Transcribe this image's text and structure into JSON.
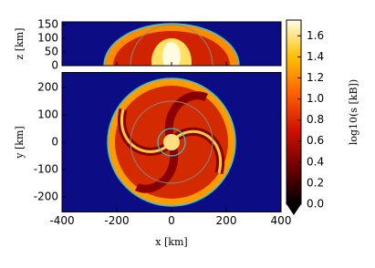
{
  "chart_data": [
    {
      "type": "heatmap",
      "ylabel": "z [km]",
      "xlim": [
        -400,
        400
      ],
      "ylim": [
        0,
        160
      ],
      "yticks": [
        0,
        50,
        100,
        150
      ]
    },
    {
      "type": "heatmap",
      "xlabel": "x [km]",
      "ylabel": "y [km]",
      "xlim": [
        -400,
        400
      ],
      "ylim": [
        -255,
        255
      ],
      "xticks": [
        -400,
        -200,
        0,
        200,
        400
      ],
      "yticks": [
        -200,
        -100,
        0,
        100,
        200
      ],
      "colorbar": {
        "label": "log10(s [kB])",
        "lim": [
          0,
          1.75
        ],
        "ticks": [
          {
            "value": 0,
            "label": "0.0"
          },
          {
            "value": 0.2,
            "label": "0.2"
          },
          {
            "value": 0.4,
            "label": "0.4"
          },
          {
            "value": 0.6,
            "label": "0.6"
          },
          {
            "value": 0.8,
            "label": "0.8"
          },
          {
            "value": 1,
            "label": "1.0"
          },
          {
            "value": 1.2,
            "label": "1.2"
          },
          {
            "value": 1.4,
            "label": "1.4"
          },
          {
            "value": 1.6,
            "label": "1.6"
          }
        ]
      }
    }
  ]
}
